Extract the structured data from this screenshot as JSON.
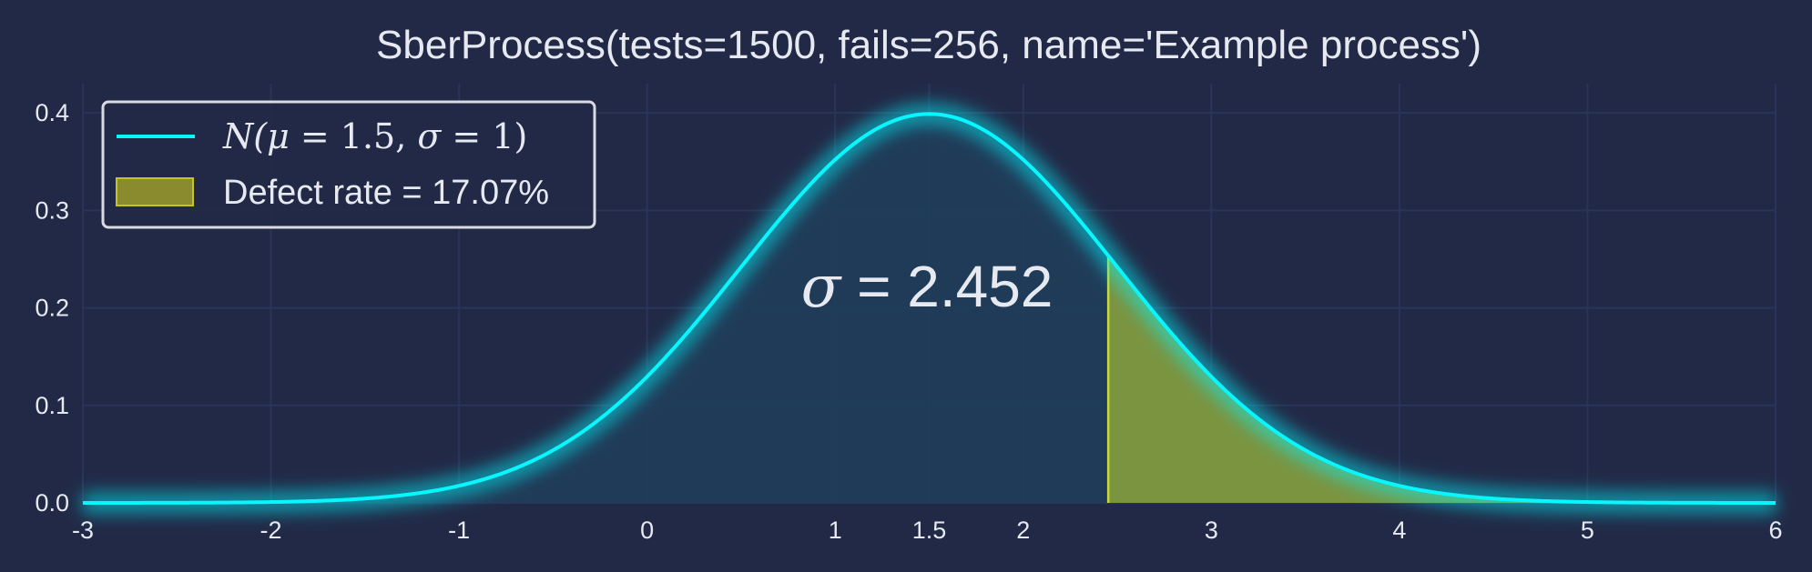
{
  "chart_data": {
    "type": "area",
    "title": "SberProcess(tests=1500, fails=256, name='Example process')",
    "xlabel": "",
    "ylabel": "",
    "xlim": [
      -3,
      6
    ],
    "ylim": [
      0,
      0.43
    ],
    "x_ticks": [
      -3,
      -2,
      -1,
      0,
      1,
      1.5,
      2,
      3,
      4,
      5,
      6
    ],
    "x_tick_labels": [
      "-3",
      "-2",
      "-1",
      "0",
      "1",
      "1.5",
      "2",
      "3",
      "4",
      "5",
      "6"
    ],
    "y_ticks": [
      0.0,
      0.1,
      0.2,
      0.3,
      0.4
    ],
    "y_tick_labels": [
      "0.0",
      "0.1",
      "0.2",
      "0.3",
      "0.4"
    ],
    "grid": true,
    "legend_position": "top-left",
    "series": [
      {
        "name": "N(μ = 1.5, σ = 1)",
        "kind": "normal_pdf_line",
        "mu": 1.5,
        "sigma": 1,
        "color": "#08F7FE"
      },
      {
        "name": "Defect rate = 17.07%",
        "kind": "shaded_tail",
        "x_from": 2.452,
        "x_to": 6,
        "color": "#8A9A2E"
      }
    ],
    "annotation": {
      "symbol": "σ",
      "text": " = 2.452",
      "x": 1.5,
      "y": 0.2
    }
  },
  "legend": {
    "line_label_prefix": "N(",
    "line_label_mu": "μ",
    "line_label_mid": " = 1.5, ",
    "line_label_sigma": "σ",
    "line_label_suffix": " = 1)",
    "patch_label": "Defect rate = 17.07%"
  },
  "colors": {
    "background": "#212946",
    "grid": "#2A3459",
    "line": "#08F7FE",
    "fill_body": "#1f3e5c",
    "fill_tail": "#7a9440",
    "tail_edge": "#c9d93a",
    "text": "#e6e9f0"
  }
}
